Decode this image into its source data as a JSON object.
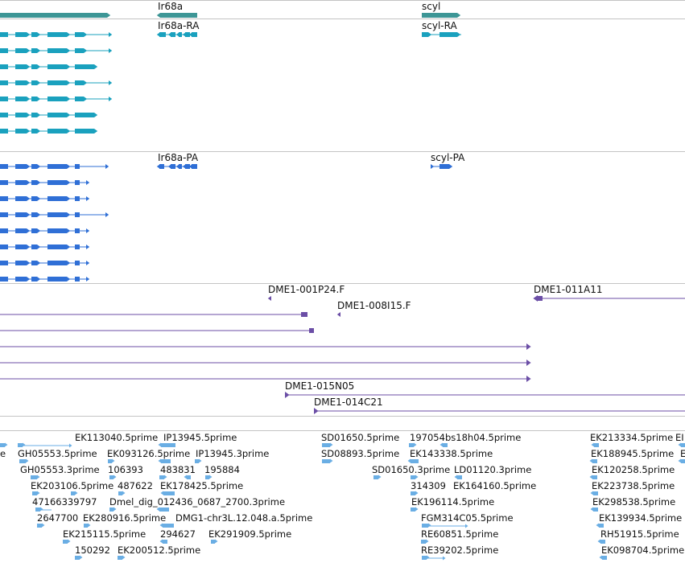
{
  "colors": {
    "gene": "#3d9696",
    "mrna": "#1aa1be",
    "cds": "#2f6fd6",
    "clone": "#6b4ea6",
    "est": "#6aaee4",
    "divider": "#c4c4c4"
  },
  "tracks": {
    "genes": {
      "labels": [
        "Ir68a",
        "scyl"
      ]
    },
    "transcripts": {
      "labels": [
        "Ir68a-RA",
        "scyl-RA"
      ]
    },
    "proteins": {
      "labels": [
        "Ir68a-PA",
        "scyl-PA"
      ]
    },
    "clones": {
      "labels": [
        "DME1-001P24.F",
        "DME1-011A11",
        "DME1-008I15.F",
        "DME1-015N05",
        "DME1-014C21"
      ]
    },
    "ests": {
      "labels": [
        "EK113040.5prime",
        "IP13945.5prime",
        "SD01650.5prime",
        "197054",
        "bs18h04.5prime",
        "EK213334.5prime",
        "EI",
        "e",
        "GH05553.5prime",
        "EK093126.5prime",
        "IP13945.3prime",
        "SD08893.5prime",
        "EK143338.5prime",
        "EK188945.5prime",
        "E",
        "GH05553.3prime",
        "106393",
        "483831",
        "195884",
        "SD01650.3prime",
        "LD01120.3prime",
        "EK120258.5prime",
        "EK203106.5prime",
        "487622",
        "EK178425.5prime",
        "314309",
        "EK164160.5prime",
        "EK223738.5prime",
        "47166339797",
        "Dmel_dig_012436_0687_2700.3prime",
        "EK196114.5prime",
        "EK298538.5prime",
        "2647700",
        "EK280916.5prime",
        "DMG1-chr3L.12.048.a.5prime",
        "FGM314C05.5prime",
        "EK139934.5prime",
        "EK215115.5prime",
        "294627",
        "EK291909.5prime",
        "RE60851.5prime",
        "RH51915.5prime",
        "150292",
        "EK200512.5prime",
        "RE39202.5prime",
        "EK098704.5prime"
      ]
    }
  }
}
